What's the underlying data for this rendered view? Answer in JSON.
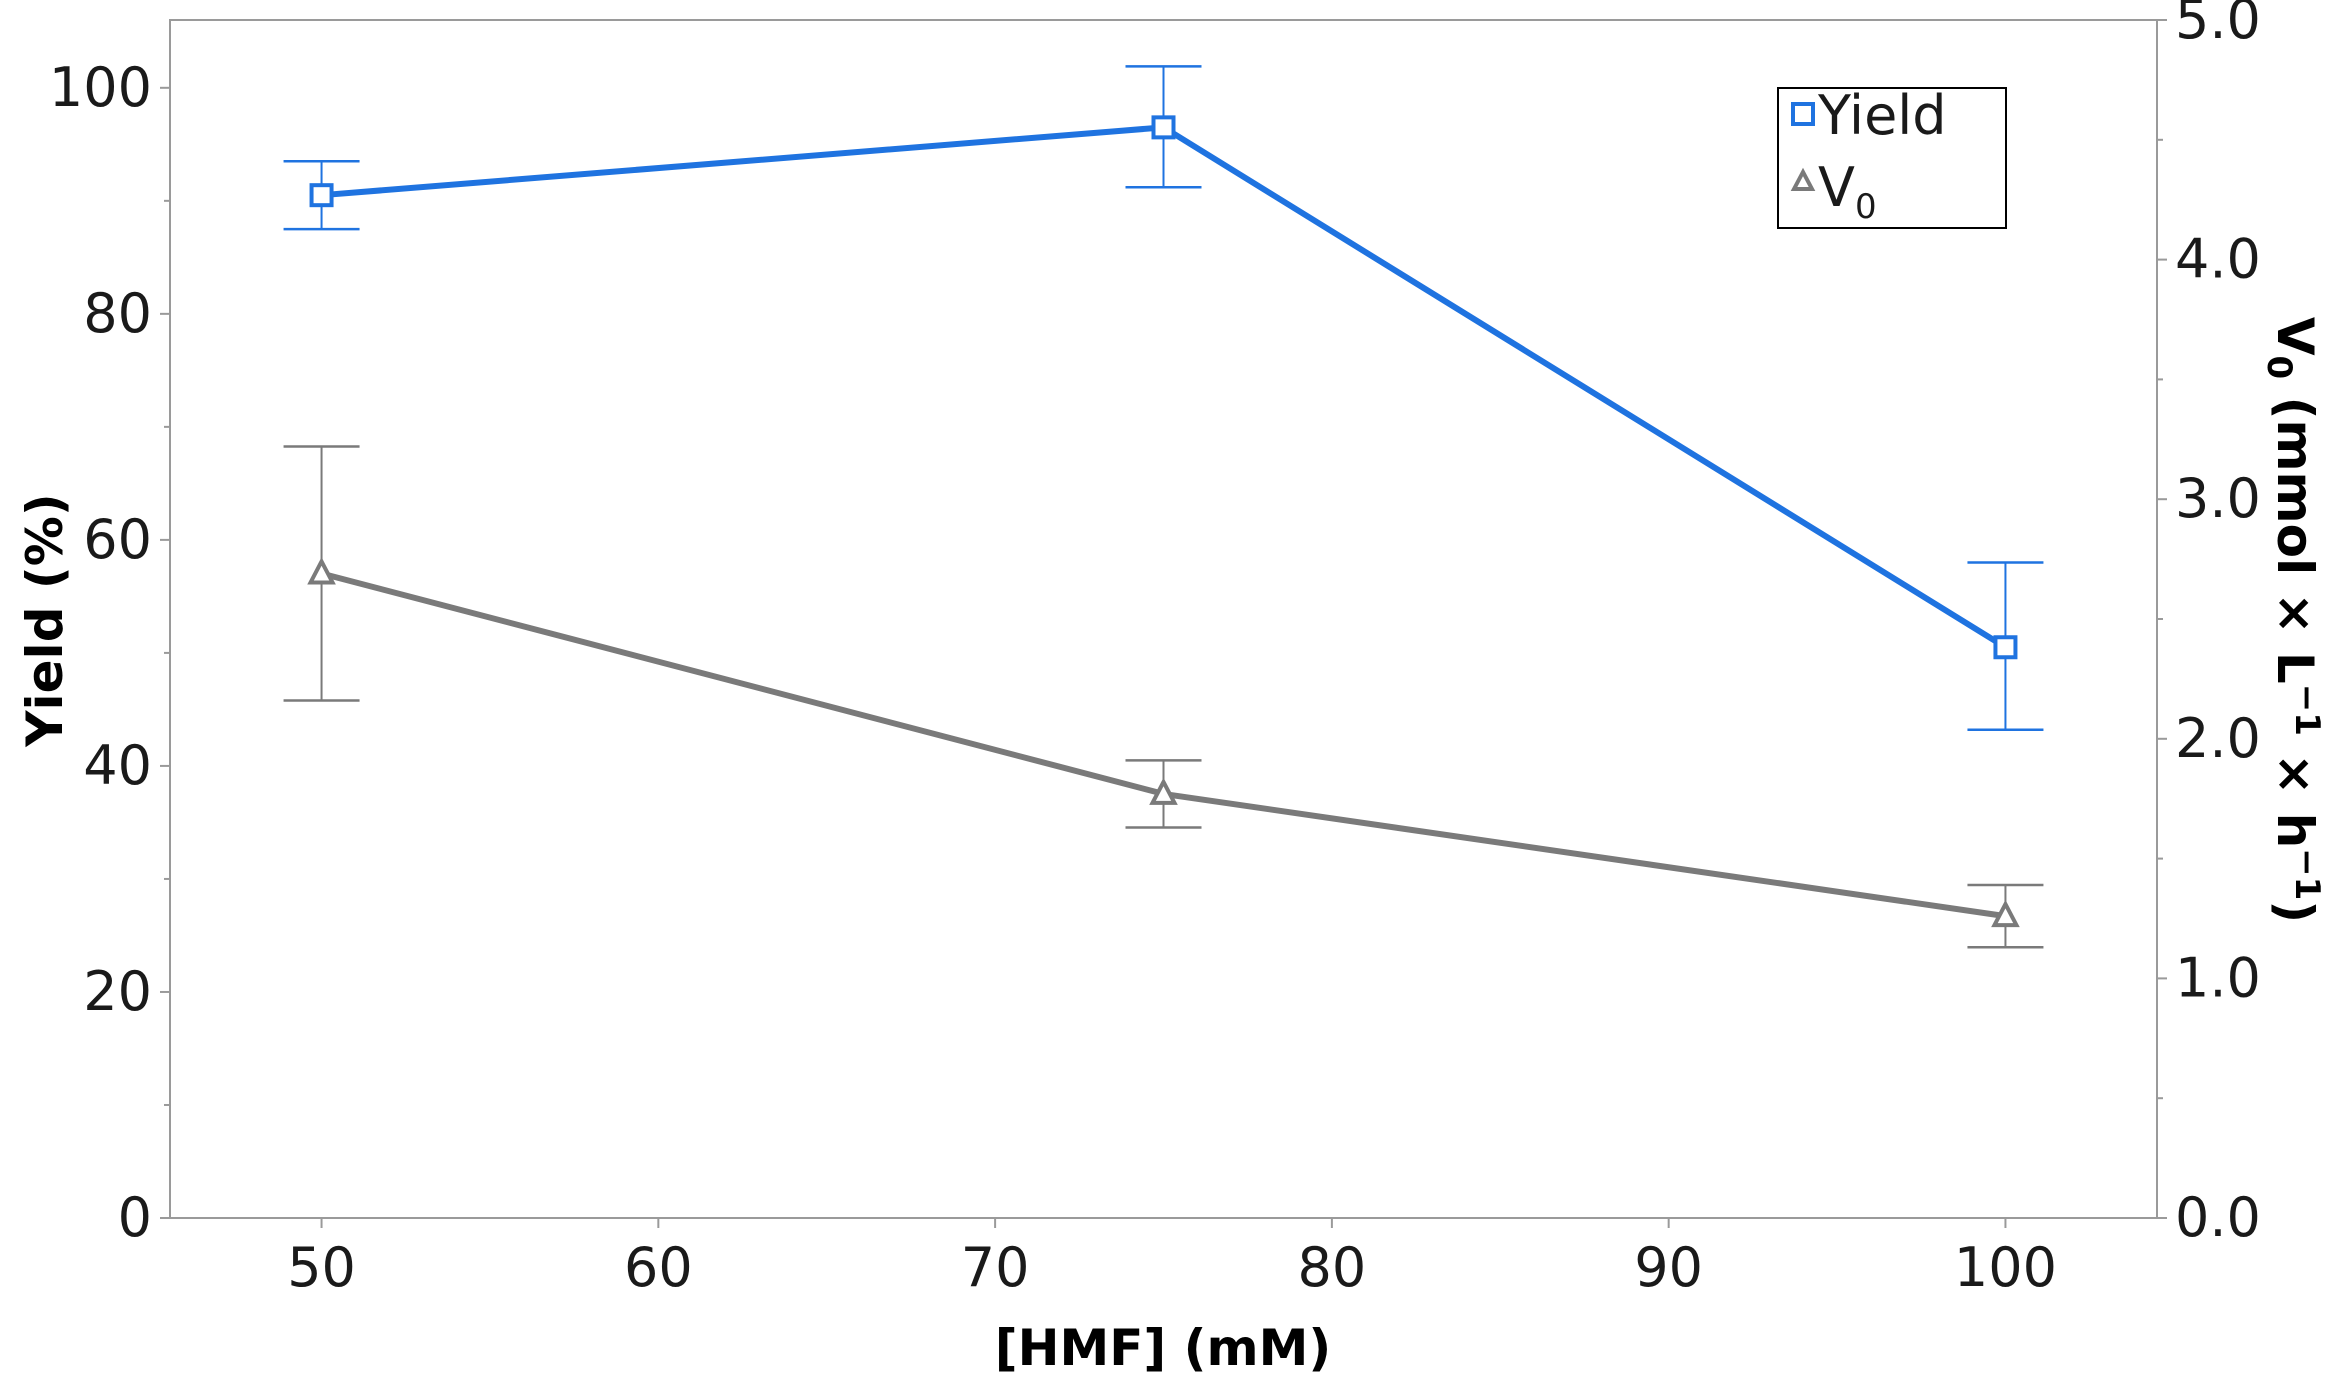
{
  "chart_data": {
    "type": "line",
    "xlabel": "[HMF] (mM)",
    "ylabel": "Yield (%)",
    "y2label": {
      "prefix": "V",
      "prefix_sub": "0",
      "unit_open": " (mmol × L",
      "exp1": "−1",
      "unit_mid": " × h",
      "exp2": "−1",
      "unit_close": ")"
    },
    "xlim": [
      45.5,
      104.5
    ],
    "ylim": [
      0,
      106
    ],
    "y2lim": [
      0,
      5.0
    ],
    "xticks": [
      50,
      60,
      70,
      80,
      90,
      100
    ],
    "xtick_labels": [
      "50",
      "60",
      "70",
      "80",
      "90",
      "100"
    ],
    "yticks": [
      0,
      20,
      40,
      60,
      80,
      100
    ],
    "ytick_labels": [
      "0",
      "20",
      "40",
      "60",
      "80",
      "100"
    ],
    "y2ticks": [
      0.0,
      1.0,
      2.0,
      3.0,
      4.0,
      5.0
    ],
    "y2tick_labels": [
      "0.0",
      "1.0",
      "2.0",
      "3.0",
      "4.0",
      "5.0"
    ],
    "series": [
      {
        "name": "Yield",
        "axis": "left",
        "marker": "square",
        "color": "#1f73e0",
        "x": [
          50,
          75,
          100
        ],
        "values": [
          90.5,
          96.5,
          50.5
        ],
        "err_low": [
          87.5,
          91.2,
          43.2
        ],
        "err_high": [
          93.5,
          101.9,
          58.0
        ]
      },
      {
        "name": "V",
        "name_sub": "0",
        "axis": "right",
        "marker": "triangle",
        "color": "#7a7a7a",
        "x": [
          50,
          75,
          100
        ],
        "values": [
          2.69,
          1.77,
          1.26
        ],
        "err_low": [
          2.16,
          1.63,
          1.13
        ],
        "err_high": [
          3.22,
          1.91,
          1.39
        ]
      }
    ],
    "legend_position": "top-right",
    "grid": false
  }
}
